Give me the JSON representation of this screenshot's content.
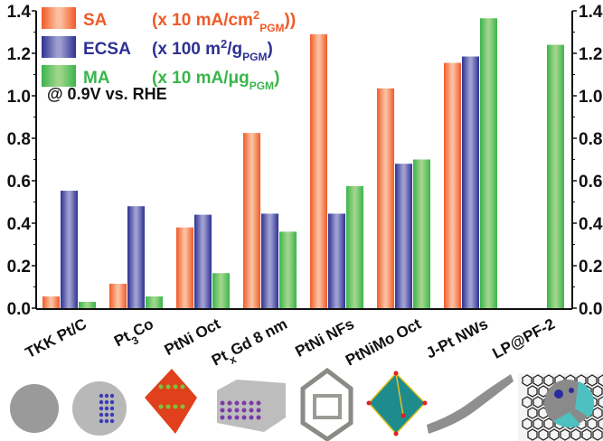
{
  "chart_data": {
    "type": "bar",
    "title": "",
    "xlabel": "",
    "ylabel": "",
    "ylim": [
      0,
      1.4
    ],
    "yticks": [
      "0.0",
      "0.2",
      "0.4",
      "0.6",
      "0.8",
      "1.0",
      "1.2",
      "1.4"
    ],
    "grid": false,
    "legend_position": "top-left",
    "annotation": "@ 0.9V vs. RHE",
    "categories": [
      {
        "main": "TKK Pt/C",
        "sub": "",
        "tail": ""
      },
      {
        "main": "Pt",
        "sub": "3",
        "tail": "Co"
      },
      {
        "main": "PtNi Oct",
        "sub": "",
        "tail": ""
      },
      {
        "main": "Pt",
        "sub": "x",
        "tail": "Gd 8 nm"
      },
      {
        "main": "PtNi NFs",
        "sub": "",
        "tail": ""
      },
      {
        "main": "PtNiMo Oct",
        "sub": "",
        "tail": ""
      },
      {
        "main": "J-Pt NWs",
        "sub": "",
        "tail": ""
      },
      {
        "main": "LP@PF-2",
        "sub": "",
        "tail": ""
      }
    ],
    "series": [
      {
        "name": "SA",
        "unit_pre": "(x 10 mA/cm",
        "unit_sup": "2",
        "unit_sub": "PGM",
        "unit_post": "))",
        "color": "#f05a28",
        "color_light": "#fbbf9f",
        "values": [
          0.055,
          0.115,
          0.38,
          0.825,
          1.29,
          1.035,
          1.155,
          null
        ]
      },
      {
        "name": "ECSA",
        "unit_pre": "(x 100 m",
        "unit_sup": "2",
        "unit_mid": "/g",
        "unit_sub": "PGM",
        "unit_post": ")",
        "color": "#2e3192",
        "color_light": "#9e9fd0",
        "values": [
          0.553,
          0.48,
          0.44,
          0.445,
          0.445,
          0.68,
          1.185,
          null
        ]
      },
      {
        "name": "MA",
        "unit_pre": "(x 10 mA/μg",
        "unit_sub": "PGM",
        "unit_post": ")",
        "color": "#39b54a",
        "color_light": "#9fd58a",
        "values": [
          0.03,
          0.055,
          0.165,
          0.36,
          0.575,
          0.7,
          1.365,
          1.24
        ]
      }
    ]
  },
  "structure_images": [
    {
      "label": "TKK Pt/C",
      "description": "gray spherical Pt nanoparticle"
    },
    {
      "label": "Pt3Co",
      "description": "gray sphere with blue Co atoms"
    },
    {
      "label": "PtNi Oct",
      "description": "red octahedron with green Ni atoms"
    },
    {
      "label": "PtxGd 8 nm",
      "description": "gray slab with purple Gd atoms"
    },
    {
      "label": "PtNi NFs",
      "description": "gray rhombic dodecahedral nanoframe"
    },
    {
      "label": "PtNiMo Oct",
      "description": "teal octahedron with red vertices"
    },
    {
      "label": "J-Pt NWs",
      "description": "gray jagged nanowire"
    },
    {
      "label": "LP@PF-2",
      "description": "particle on N-doped graphene sheet"
    }
  ]
}
